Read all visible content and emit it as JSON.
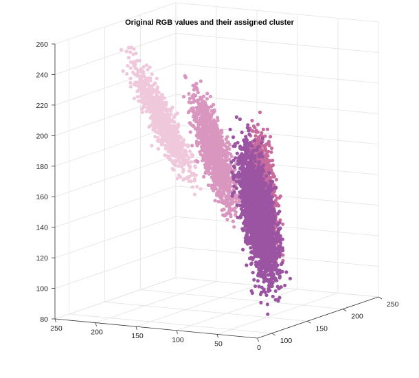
{
  "chart_data": {
    "type": "scatter",
    "subtype": "scatter3d",
    "title": "Original RGB values and their assigned cluster",
    "xlabel": "",
    "ylabel": "",
    "zlabel": "",
    "xlim": [
      0,
      250
    ],
    "ylim": [
      80,
      250
    ],
    "zlim": [
      80,
      260
    ],
    "x_ticks": [
      "0",
      "50",
      "100",
      "150",
      "200",
      "250"
    ],
    "y_ticks": [
      "100",
      "150",
      "200",
      "250"
    ],
    "z_ticks": [
      "80",
      "100",
      "120",
      "140",
      "160",
      "180",
      "200",
      "220",
      "240",
      "260"
    ],
    "grid": true,
    "series": [
      {
        "color": "#f0c8dc",
        "approx_extent": {
          "x": [
            90,
            240
          ],
          "y": [
            110,
            160
          ],
          "z": [
            150,
            260
          ]
        }
      },
      {
        "color": "#d996bf",
        "approx_extent": {
          "x": [
            50,
            180
          ],
          "y": [
            110,
            190
          ],
          "z": [
            130,
            240
          ]
        }
      },
      {
        "color": "#c86c9d",
        "approx_extent": {
          "x": [
            40,
            130
          ],
          "y": [
            140,
            230
          ],
          "z": [
            100,
            210
          ]
        }
      },
      {
        "color": "#9b54a2",
        "approx_extent": {
          "x": [
            0,
            130
          ],
          "y": [
            100,
            210
          ],
          "z": [
            80,
            210
          ]
        }
      }
    ]
  }
}
